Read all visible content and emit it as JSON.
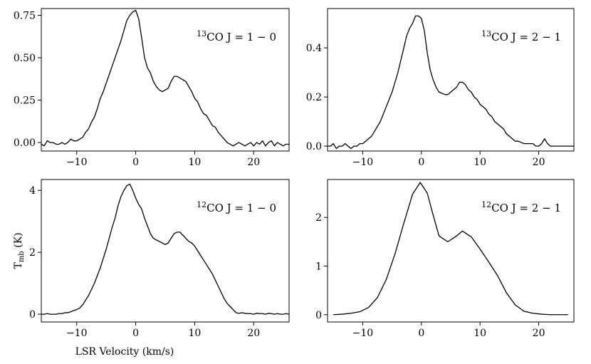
{
  "ylabel": "Tmb (K)",
  "xlabel": "LSR Velocity (km/s)",
  "chart_data": [
    {
      "type": "line",
      "annotation": "13CO J = 1 − 0",
      "xlim": [
        -16,
        26
      ],
      "ylim": [
        -0.05,
        0.79
      ],
      "xticks": [
        -10,
        0,
        10,
        20
      ],
      "xtick_labels": [
        "−10",
        "0",
        "10",
        "20"
      ],
      "yticks": [
        0,
        0.25,
        0.5,
        0.75
      ],
      "ytick_labels": [
        "0.00",
        "0.25",
        "0.50",
        "0.75"
      ],
      "series": [
        {
          "x": [
            -16,
            -15.5,
            -15,
            -14.5,
            -14,
            -13.5,
            -13,
            -12.5,
            -12,
            -11.5,
            -11,
            -10.5,
            -10,
            -9.5,
            -9,
            -8.5,
            -8,
            -7.5,
            -7,
            -6.5,
            -6,
            -5.5,
            -5,
            -4.5,
            -4,
            -3.5,
            -3,
            -2.5,
            -2,
            -1.5,
            -1,
            -0.5,
            0,
            0.5,
            1,
            1.5,
            2,
            2.5,
            3,
            3.5,
            4,
            4.5,
            5,
            5.5,
            6,
            6.5,
            7,
            7.5,
            8,
            8.5,
            9,
            9.5,
            10,
            10.5,
            11,
            11.5,
            12,
            12.5,
            13,
            13.5,
            14,
            14.5,
            15,
            15.5,
            16,
            16.5,
            17,
            17.5,
            18,
            18.5,
            19,
            19.5,
            20,
            20.5,
            21,
            21.5,
            22,
            22.5,
            23,
            23.5,
            24,
            24.5,
            25,
            25.5,
            26
          ],
          "y": [
            -0.01,
            -0.02,
            0.01,
            0.0,
            0.0,
            -0.01,
            -0.01,
            0.0,
            -0.01,
            0.0,
            0.02,
            0.01,
            0.01,
            0.02,
            0.03,
            0.06,
            0.08,
            0.12,
            0.15,
            0.2,
            0.26,
            0.3,
            0.35,
            0.4,
            0.45,
            0.5,
            0.55,
            0.6,
            0.66,
            0.72,
            0.75,
            0.77,
            0.78,
            0.73,
            0.62,
            0.5,
            0.44,
            0.41,
            0.36,
            0.33,
            0.31,
            0.3,
            0.31,
            0.32,
            0.36,
            0.39,
            0.39,
            0.38,
            0.37,
            0.36,
            0.33,
            0.3,
            0.26,
            0.24,
            0.2,
            0.17,
            0.16,
            0.13,
            0.1,
            0.09,
            0.06,
            0.04,
            0.02,
            0.0,
            -0.01,
            -0.02,
            -0.01,
            0.0,
            -0.01,
            -0.02,
            -0.01,
            0.0,
            -0.02,
            0.0,
            -0.01,
            0.01,
            -0.02,
            0.0,
            0.01,
            -0.02,
            0.0,
            -0.01,
            -0.02,
            -0.01,
            -0.01
          ]
        }
      ]
    },
    {
      "type": "line",
      "annotation": "13CO J = 2 − 1",
      "xlim": [
        -16,
        26
      ],
      "ylim": [
        -0.02,
        0.56
      ],
      "xticks": [
        -10,
        0,
        10,
        20
      ],
      "xtick_labels": [
        "−10",
        "0",
        "10",
        "20"
      ],
      "yticks": [
        0,
        0.2,
        0.4
      ],
      "ytick_labels": [
        "0.0",
        "0.2",
        "0.4"
      ],
      "series": [
        {
          "x": [
            -16,
            -15.5,
            -15,
            -14.5,
            -14,
            -13.5,
            -13,
            -12.5,
            -12,
            -11.5,
            -11,
            -10.5,
            -10,
            -9.5,
            -9,
            -8.5,
            -8,
            -7.5,
            -7,
            -6.5,
            -6,
            -5.5,
            -5,
            -4.5,
            -4,
            -3.5,
            -3,
            -2.5,
            -2,
            -1.5,
            -1,
            -0.5,
            0,
            0.5,
            1,
            1.5,
            2,
            2.5,
            3,
            3.5,
            4,
            4.5,
            5,
            5.5,
            6,
            6.5,
            7,
            7.5,
            8,
            8.5,
            9,
            9.5,
            10,
            10.5,
            11,
            11.5,
            12,
            12.5,
            13,
            13.5,
            14,
            14.5,
            15,
            15.5,
            16,
            16.5,
            17,
            17.5,
            18,
            18.5,
            19,
            19.5,
            20,
            20.5,
            21,
            21.5,
            22,
            22.5,
            23,
            23.5,
            24,
            24.5,
            25,
            25.5,
            26
          ],
          "y": [
            0.0,
            0.0,
            0.01,
            -0.01,
            0.0,
            0.0,
            0.01,
            0.0,
            -0.01,
            0.0,
            0.0,
            0.01,
            0.01,
            0.02,
            0.03,
            0.04,
            0.06,
            0.08,
            0.1,
            0.13,
            0.16,
            0.19,
            0.22,
            0.26,
            0.3,
            0.35,
            0.4,
            0.45,
            0.48,
            0.5,
            0.53,
            0.53,
            0.52,
            0.47,
            0.38,
            0.31,
            0.27,
            0.24,
            0.22,
            0.215,
            0.21,
            0.21,
            0.22,
            0.23,
            0.24,
            0.26,
            0.26,
            0.25,
            0.23,
            0.22,
            0.2,
            0.19,
            0.17,
            0.16,
            0.15,
            0.13,
            0.12,
            0.1,
            0.09,
            0.08,
            0.07,
            0.05,
            0.04,
            0.03,
            0.02,
            0.02,
            0.015,
            0.01,
            0.01,
            0.01,
            0.01,
            0.0,
            0.0,
            0.01,
            0.03,
            0.01,
            0.0,
            0.0,
            0.0,
            0.0,
            0.0,
            0.0,
            0.0,
            0.0,
            0.0
          ]
        }
      ]
    },
    {
      "type": "line",
      "annotation": "12CO J = 1 − 0",
      "xlim": [
        -16,
        26
      ],
      "ylim": [
        -0.25,
        4.35
      ],
      "xticks": [
        -10,
        0,
        10,
        20
      ],
      "xtick_labels": [
        "−10",
        "0",
        "10",
        "20"
      ],
      "yticks": [
        0,
        2,
        4
      ],
      "ytick_labels": [
        "0",
        "2",
        "4"
      ],
      "series": [
        {
          "x": [
            -16,
            -15.5,
            -15,
            -14.5,
            -14,
            -13.5,
            -13,
            -12.5,
            -12,
            -11.5,
            -11,
            -10.5,
            -10,
            -9.5,
            -9,
            -8.5,
            -8,
            -7.5,
            -7,
            -6.5,
            -6,
            -5.5,
            -5,
            -4.5,
            -4,
            -3.5,
            -3,
            -2.5,
            -2,
            -1.5,
            -1,
            -0.5,
            0,
            0.5,
            1,
            1.5,
            2,
            2.5,
            3,
            3.5,
            4,
            4.5,
            5,
            5.5,
            6,
            6.5,
            7,
            7.5,
            8,
            8.5,
            9,
            9.5,
            10,
            10.5,
            11,
            11.5,
            12,
            12.5,
            13,
            13.5,
            14,
            14.5,
            15,
            15.5,
            16,
            16.5,
            17,
            17.5,
            18,
            18.5,
            19,
            19.5,
            20,
            20.5,
            21,
            21.5,
            22,
            22.5,
            23,
            23.5,
            24,
            24.5,
            25,
            25.5,
            26
          ],
          "y": [
            0.0,
            0.0,
            0.02,
            0.0,
            0.0,
            0.0,
            0.02,
            0.02,
            0.05,
            0.05,
            0.08,
            0.12,
            0.15,
            0.2,
            0.3,
            0.45,
            0.6,
            0.8,
            1.0,
            1.25,
            1.5,
            1.8,
            2.1,
            2.45,
            2.8,
            3.1,
            3.5,
            3.8,
            4.0,
            4.15,
            4.2,
            4.0,
            3.75,
            3.55,
            3.4,
            3.1,
            2.85,
            2.6,
            2.45,
            2.4,
            2.35,
            2.3,
            2.25,
            2.3,
            2.45,
            2.6,
            2.65,
            2.65,
            2.55,
            2.45,
            2.35,
            2.3,
            2.2,
            2.05,
            1.9,
            1.75,
            1.6,
            1.45,
            1.3,
            1.1,
            0.9,
            0.7,
            0.5,
            0.35,
            0.25,
            0.15,
            0.05,
            0.03,
            0.05,
            0.03,
            0.02,
            0.02,
            0.0,
            0.03,
            0.02,
            0.02,
            0.0,
            0.03,
            0.02,
            0.0,
            0.02,
            0.0,
            0.0,
            0.02,
            0.0
          ]
        }
      ]
    },
    {
      "type": "line",
      "annotation": "12CO J = 2 − 1",
      "xlim": [
        -16,
        26
      ],
      "ylim": [
        -0.15,
        2.78
      ],
      "xticks": [
        -10,
        0,
        10,
        20
      ],
      "xtick_labels": [
        "−10",
        "0",
        "10",
        "20"
      ],
      "yticks": [
        0,
        1,
        2
      ],
      "ytick_labels": [
        "0",
        "1",
        "2"
      ],
      "series": [
        {
          "x": [
            -15,
            -13.5,
            -12,
            -10.5,
            -9,
            -7.5,
            -6,
            -4.5,
            -3,
            -1.5,
            -0.2,
            1,
            2,
            3,
            4.5,
            6,
            7,
            8.5,
            10,
            11.5,
            13,
            14.5,
            16,
            17.5,
            19,
            20.5,
            22,
            23.5,
            25
          ],
          "y": [
            0.0,
            0.01,
            0.03,
            0.06,
            0.15,
            0.35,
            0.72,
            1.25,
            1.88,
            2.48,
            2.72,
            2.5,
            2.05,
            1.62,
            1.5,
            1.62,
            1.72,
            1.6,
            1.35,
            1.08,
            0.8,
            0.45,
            0.2,
            0.07,
            0.03,
            0.01,
            0.0,
            0.0,
            0.0
          ]
        }
      ]
    }
  ]
}
